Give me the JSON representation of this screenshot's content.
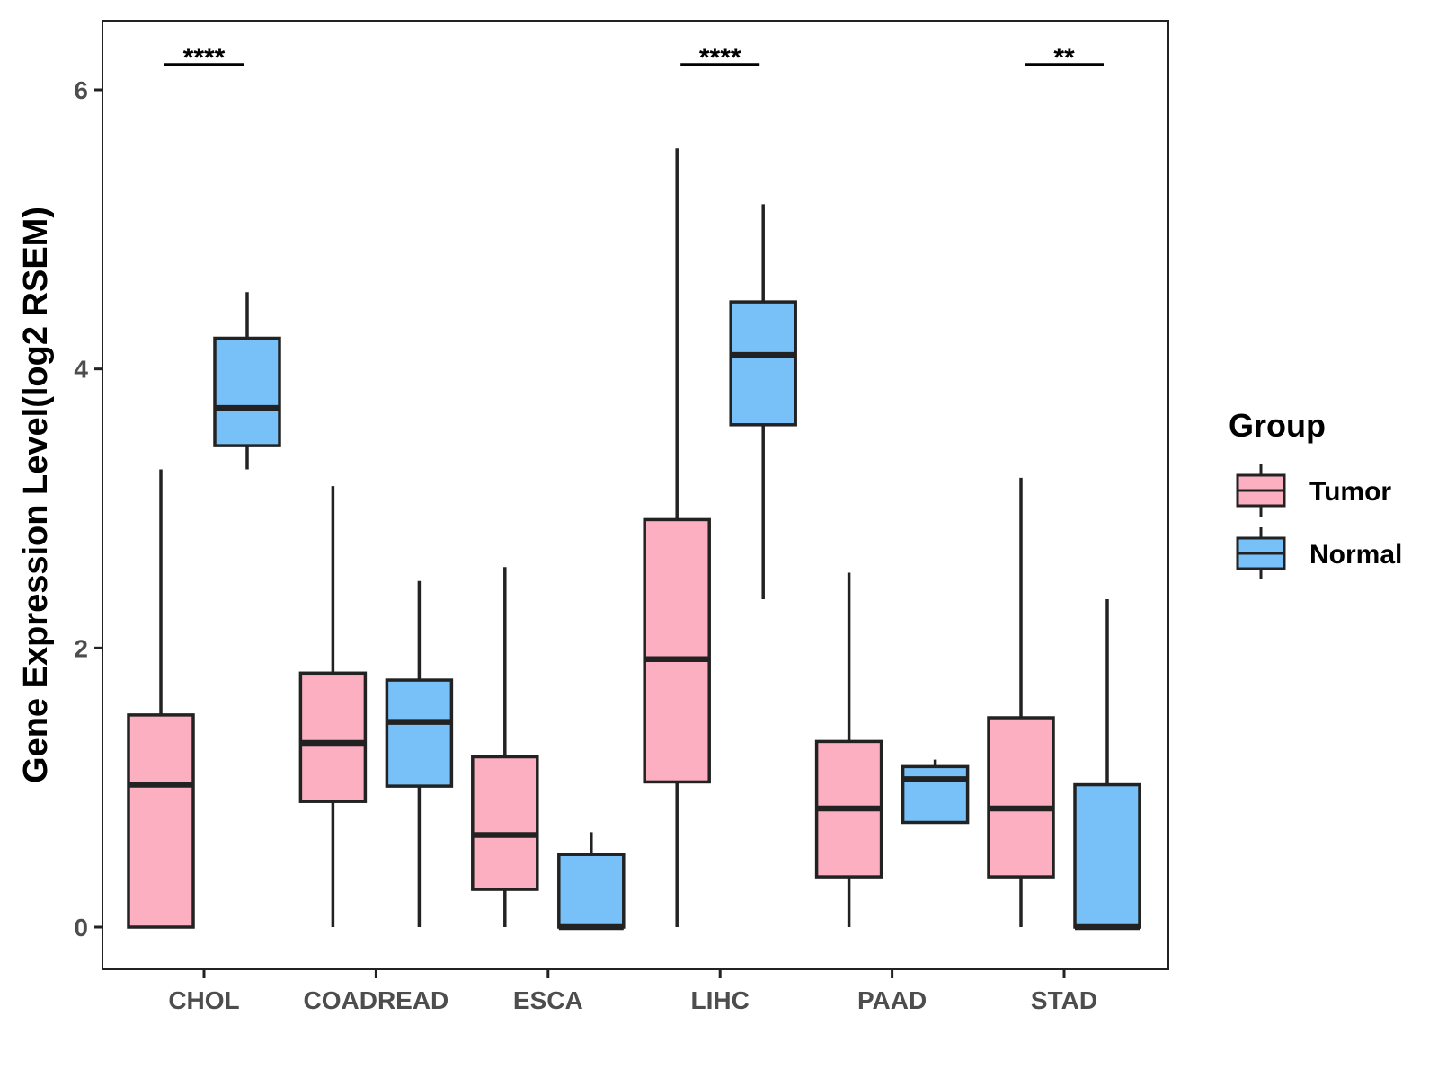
{
  "chart_data": {
    "type": "boxplot",
    "title": "",
    "xlabel": "",
    "ylabel": "Gene Expression Level(log2 RSEM)",
    "ylim": [
      -0.3,
      6.5
    ],
    "yticks": [
      0,
      2,
      4,
      6
    ],
    "grid": false,
    "legend_position": "right",
    "legend_title": "Group",
    "categories": [
      "CHOL",
      "COADREAD",
      "ESCA",
      "LIHC",
      "PAAD",
      "STAD"
    ],
    "series": [
      {
        "name": "Tumor",
        "color": "#FBAFC1",
        "boxes": [
          {
            "min": 0.0,
            "q1": 0.0,
            "median": 1.02,
            "q3": 1.52,
            "max": 3.28
          },
          {
            "min": 0.0,
            "q1": 0.9,
            "median": 1.32,
            "q3": 1.82,
            "max": 3.16
          },
          {
            "min": 0.0,
            "q1": 0.27,
            "median": 0.66,
            "q3": 1.22,
            "max": 2.58
          },
          {
            "min": 0.0,
            "q1": 1.04,
            "median": 1.92,
            "q3": 2.92,
            "max": 5.58
          },
          {
            "min": 0.0,
            "q1": 0.36,
            "median": 0.85,
            "q3": 1.33,
            "max": 2.54
          },
          {
            "min": 0.0,
            "q1": 0.36,
            "median": 0.85,
            "q3": 1.5,
            "max": 3.22
          }
        ]
      },
      {
        "name": "Normal",
        "color": "#77C1F8",
        "boxes": [
          {
            "min": 3.28,
            "q1": 3.45,
            "median": 3.72,
            "q3": 4.22,
            "max": 4.55
          },
          {
            "min": 0.0,
            "q1": 1.01,
            "median": 1.47,
            "q3": 1.77,
            "max": 2.48
          },
          {
            "min": 0.0,
            "q1": 0.0,
            "median": 0.0,
            "q3": 0.52,
            "max": 0.68
          },
          {
            "min": 2.35,
            "q1": 3.6,
            "median": 4.1,
            "q3": 4.48,
            "max": 5.18
          },
          {
            "min": 0.75,
            "q1": 0.75,
            "median": 1.06,
            "q3": 1.15,
            "max": 1.2
          },
          {
            "min": 0.0,
            "q1": 0.0,
            "median": 0.0,
            "q3": 1.02,
            "max": 2.35
          }
        ]
      }
    ],
    "significance": [
      {
        "category": "CHOL",
        "label": "****",
        "y": 6.18
      },
      {
        "category": "LIHC",
        "label": "****",
        "y": 6.18
      },
      {
        "category": "STAD",
        "label": "**",
        "y": 6.18
      }
    ]
  }
}
